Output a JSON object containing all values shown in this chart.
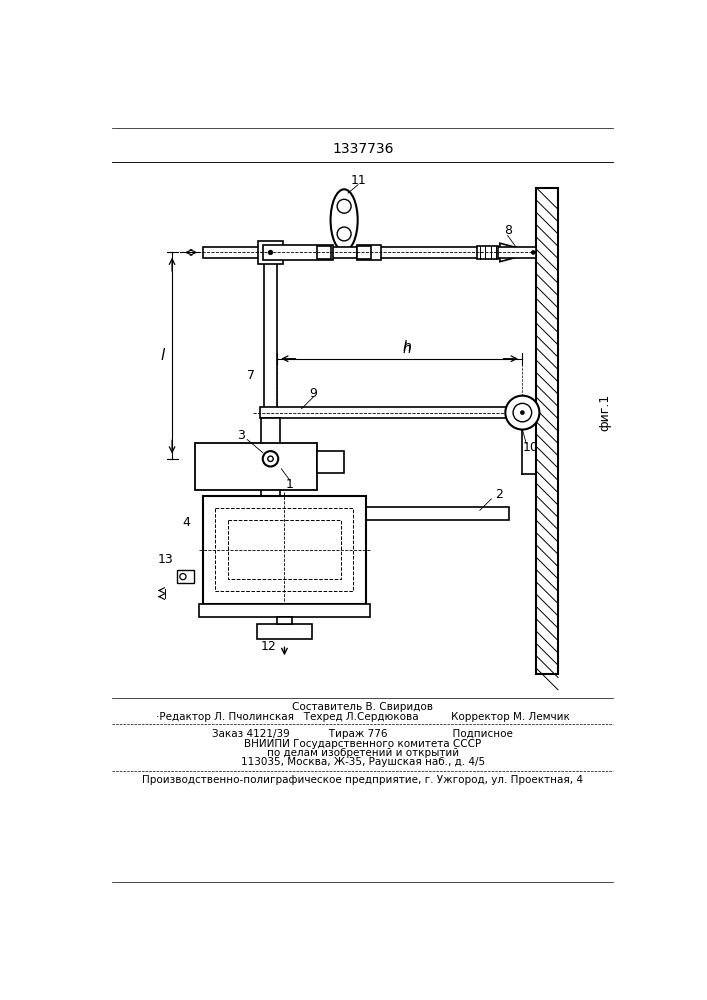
{
  "patent_number": "1337736",
  "fig_label": "фиг.1",
  "bg_color": "#ffffff",
  "footer_lines": [
    "Составитель В. Свиридов",
    "·Редактор Л. Пчолинская   Техред Л.Сердюкова          Корректор М. Лемчик",
    "Заказ 4121/39            Тираж 776                    Подписное",
    "ВНИИПИ Государственного комитета СССР",
    "по делам изобретений и открытий",
    "113035, Москва, Ж-35, Раушская наб., д. 4/5",
    "Производственно-полиграфическое предприятие, г. Ужгород, ул. Проектная, 4"
  ]
}
